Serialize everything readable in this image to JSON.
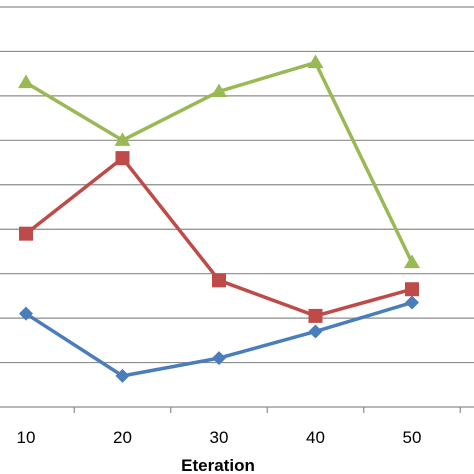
{
  "chart_data": {
    "type": "line",
    "x": [
      10,
      20,
      30,
      40,
      50
    ],
    "xlabel": "Eteration",
    "ylabel": "",
    "grid": true,
    "series": [
      {
        "color": "#4a7ebb",
        "marker": "diamond",
        "values": [
          2.1,
          0.7,
          1.1,
          1.7,
          2.35
        ]
      },
      {
        "color": "#be4b48",
        "marker": "square",
        "values": [
          3.9,
          5.6,
          2.85,
          2.05,
          2.65
        ]
      },
      {
        "color": "#98b954",
        "marker": "triangle",
        "values": [
          7.3,
          6.0,
          7.1,
          7.75,
          3.25
        ]
      }
    ]
  }
}
